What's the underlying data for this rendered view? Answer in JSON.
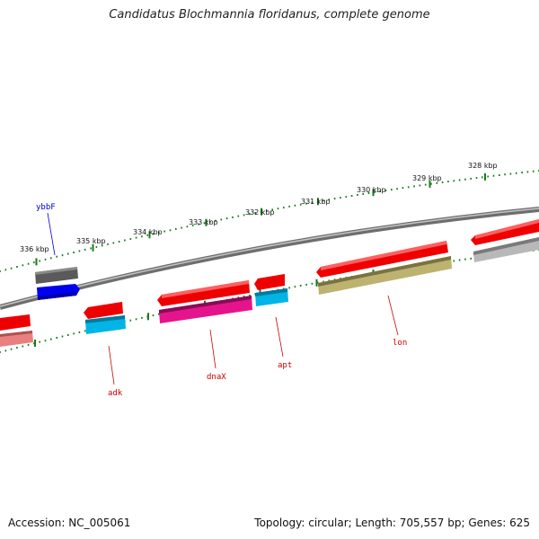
{
  "title": "Candidatus Blochmannia floridanus, complete genome",
  "footer": {
    "accession": "Accession: NC_005061",
    "summary": "Topology: circular; Length: 705,557 bp; Genes: 625"
  },
  "scale_labels": [
    "336 kbp",
    "335 kbp",
    "334 kbp",
    "333 kbp",
    "332 kbp",
    "331 kbp",
    "330 kbp",
    "329 kbp",
    "328 kbp"
  ],
  "gene_labels": [
    {
      "id": "ybbF",
      "text": "ybbF",
      "color": "#0000cc"
    },
    {
      "id": "adk",
      "text": "adk",
      "color": "#cc0000"
    },
    {
      "id": "dnaX",
      "text": "dnaX",
      "color": "#cc0000"
    },
    {
      "id": "apt",
      "text": "apt",
      "color": "#cc0000"
    },
    {
      "id": "lon",
      "text": "lon",
      "color": "#cc0000"
    }
  ],
  "colors": {
    "backbone": "#808080",
    "tick": "#1a7a1a",
    "gene_red": "#ee0000",
    "gene_blue": "#0000ee",
    "gene_cyan": "#00b4e6",
    "gene_magenta": "#e6148c",
    "gene_olive": "#b4aa64",
    "gene_gray": "#555555",
    "gene_lightgray": "#b0b0b0",
    "gene_pink": "#e08080"
  }
}
